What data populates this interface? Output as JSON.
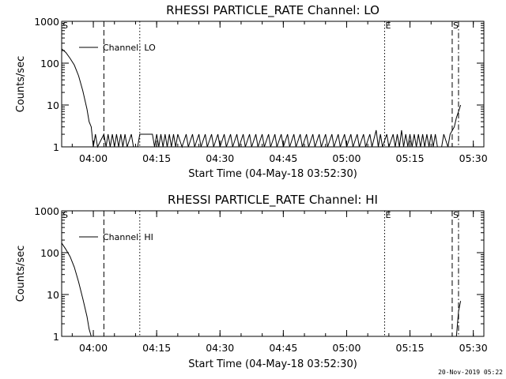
{
  "footer_text": "20-Nov-2019 05:22",
  "chart_data": [
    {
      "type": "line",
      "title": "RHESSI PARTICLE_RATE Channel: LO",
      "xlabel": "Start Time (04-May-18 03:52:30)",
      "ylabel": "Counts/sec",
      "yscale": "log",
      "xlim": [
        "03:52:30",
        "05:32:30"
      ],
      "ylim": [
        1,
        1000
      ],
      "x_ticks": [
        "04:00",
        "04:15",
        "04:30",
        "04:45",
        "05:00",
        "05:15",
        "05:30"
      ],
      "y_ticks": [
        1,
        10,
        100,
        1000
      ],
      "y_tick_labels": [
        "1",
        "10",
        "100",
        "1000"
      ],
      "legend": {
        "position": "top-left",
        "entries": [
          "Channel: LO"
        ]
      },
      "markers": [
        {
          "time": "03:52:30",
          "label": "S",
          "style": "solid"
        },
        {
          "time": "04:02:30",
          "label": "",
          "style": "dashed"
        },
        {
          "time": "04:11:00",
          "label": "",
          "style": "dotted"
        },
        {
          "time": "05:09:00",
          "label": "E",
          "style": "dotted"
        },
        {
          "time": "05:25:00",
          "label": "S",
          "style": "dashed"
        },
        {
          "time": "05:26:30",
          "label": "",
          "style": "dashdot"
        }
      ],
      "series": [
        {
          "name": "Channel: LO",
          "points": [
            [
              "03:52:30",
              220
            ],
            [
              "03:53:30",
              180
            ],
            [
              "03:54:30",
              130
            ],
            [
              "03:55:30",
              90
            ],
            [
              "03:56:30",
              50
            ],
            [
              "03:57:30",
              22
            ],
            [
              "03:58:30",
              8
            ],
            [
              "03:59:00",
              4
            ],
            [
              "03:59:30",
              3
            ],
            [
              "04:00:00",
              1
            ],
            [
              "04:00:30",
              2
            ],
            [
              "04:01:00",
              1
            ],
            [
              "04:02:30",
              2
            ],
            [
              "04:03:00",
              1
            ],
            [
              "04:03:30",
              2
            ],
            [
              "04:04:00",
              1
            ],
            [
              "04:04:30",
              2
            ],
            [
              "04:05:00",
              1
            ],
            [
              "04:05:30",
              2
            ],
            [
              "04:06:00",
              1
            ],
            [
              "04:06:30",
              2
            ],
            [
              "04:07:00",
              1
            ],
            [
              "04:07:30",
              2
            ],
            [
              "04:08:00",
              1
            ],
            [
              "04:09:00",
              2
            ],
            [
              "04:09:30",
              1
            ],
            [
              "04:10:30",
              1
            ],
            [
              "04:11:00",
              2
            ],
            [
              "04:14:00",
              2
            ],
            [
              "04:14:30",
              1
            ],
            [
              "04:15:00",
              2
            ],
            [
              "04:15:30",
              1
            ],
            [
              "04:16:00",
              2
            ],
            [
              "04:16:30",
              1
            ],
            [
              "04:17:00",
              2
            ],
            [
              "04:17:30",
              1
            ],
            [
              "04:18:00",
              2
            ],
            [
              "04:18:30",
              1
            ],
            [
              "04:19:00",
              2
            ],
            [
              "04:19:30",
              1
            ],
            [
              "04:20:00",
              2
            ],
            [
              "04:21:00",
              1
            ],
            [
              "04:22:00",
              2
            ],
            [
              "04:22:30",
              1
            ],
            [
              "04:23:30",
              2
            ],
            [
              "04:24:00",
              1
            ],
            [
              "04:25:00",
              2
            ],
            [
              "04:25:30",
              1
            ],
            [
              "04:26:30",
              2
            ],
            [
              "04:27:00",
              1
            ],
            [
              "04:28:00",
              2
            ],
            [
              "04:28:30",
              1
            ],
            [
              "04:29:30",
              2
            ],
            [
              "04:30:00",
              1
            ],
            [
              "04:31:00",
              2
            ],
            [
              "04:31:30",
              1
            ],
            [
              "04:32:30",
              2
            ],
            [
              "04:33:00",
              1
            ],
            [
              "04:34:00",
              2
            ],
            [
              "04:34:30",
              1
            ],
            [
              "04:35:30",
              2
            ],
            [
              "04:36:00",
              1
            ],
            [
              "04:37:00",
              2
            ],
            [
              "04:37:30",
              1
            ],
            [
              "04:38:30",
              2
            ],
            [
              "04:39:00",
              1
            ],
            [
              "04:40:00",
              2
            ],
            [
              "04:40:30",
              1
            ],
            [
              "04:41:30",
              2
            ],
            [
              "04:42:00",
              1
            ],
            [
              "04:43:00",
              2
            ],
            [
              "04:43:30",
              1
            ],
            [
              "04:44:30",
              2
            ],
            [
              "04:45:00",
              1
            ],
            [
              "04:46:00",
              2
            ],
            [
              "04:46:30",
              1
            ],
            [
              "04:47:30",
              2
            ],
            [
              "04:48:00",
              1
            ],
            [
              "04:49:00",
              2
            ],
            [
              "04:49:30",
              1
            ],
            [
              "04:50:30",
              2
            ],
            [
              "04:51:00",
              1
            ],
            [
              "04:52:00",
              2
            ],
            [
              "04:52:30",
              1
            ],
            [
              "04:53:30",
              2
            ],
            [
              "04:54:00",
              1
            ],
            [
              "04:55:00",
              2
            ],
            [
              "04:55:30",
              1
            ],
            [
              "04:56:30",
              2
            ],
            [
              "04:57:00",
              1
            ],
            [
              "04:58:00",
              2
            ],
            [
              "04:58:30",
              1
            ],
            [
              "04:59:30",
              2
            ],
            [
              "05:00:00",
              1
            ],
            [
              "05:01:00",
              2
            ],
            [
              "05:01:30",
              1
            ],
            [
              "05:02:30",
              2
            ],
            [
              "05:03:00",
              1
            ],
            [
              "05:04:00",
              2
            ],
            [
              "05:04:30",
              1
            ],
            [
              "05:05:30",
              2
            ],
            [
              "05:06:00",
              1
            ],
            [
              "05:07:00",
              2.5
            ],
            [
              "05:07:30",
              1
            ],
            [
              "05:08:00",
              2
            ],
            [
              "05:08:30",
              1
            ],
            [
              "05:09:30",
              2
            ],
            [
              "05:10:00",
              1
            ],
            [
              "05:11:00",
              2
            ],
            [
              "05:11:30",
              1
            ],
            [
              "05:12:00",
              2
            ],
            [
              "05:12:30",
              1
            ],
            [
              "05:13:00",
              2.5
            ],
            [
              "05:13:30",
              1
            ],
            [
              "05:14:00",
              2
            ],
            [
              "05:14:30",
              1
            ],
            [
              "05:15:00",
              2
            ],
            [
              "05:15:30",
              1
            ],
            [
              "05:16:00",
              2
            ],
            [
              "05:16:30",
              1
            ],
            [
              "05:17:00",
              2
            ],
            [
              "05:17:30",
              1
            ],
            [
              "05:18:00",
              2
            ],
            [
              "05:18:30",
              1
            ],
            [
              "05:19:00",
              2
            ],
            [
              "05:19:30",
              1
            ],
            [
              "05:20:00",
              2
            ],
            [
              "05:20:30",
              1
            ],
            [
              "05:21:00",
              2
            ],
            [
              "05:21:30",
              1
            ],
            [
              "05:22:30",
              1
            ],
            [
              "05:23:00",
              2
            ],
            [
              "05:24:00",
              1
            ],
            [
              "05:24:30",
              2
            ],
            [
              "05:25:30",
              3
            ],
            [
              "05:26:00",
              5
            ],
            [
              "05:26:30",
              7
            ],
            [
              "05:27:00",
              10
            ]
          ]
        }
      ]
    },
    {
      "type": "line",
      "title": "RHESSI PARTICLE_RATE Channel: HI",
      "xlabel": "Start Time (04-May-18 03:52:30)",
      "ylabel": "Counts/sec",
      "yscale": "log",
      "xlim": [
        "03:52:30",
        "05:32:30"
      ],
      "ylim": [
        1,
        1000
      ],
      "x_ticks": [
        "04:00",
        "04:15",
        "04:30",
        "04:45",
        "05:00",
        "05:15",
        "05:30"
      ],
      "y_ticks": [
        1,
        10,
        100,
        1000
      ],
      "y_tick_labels": [
        "1",
        "10",
        "100",
        "1000"
      ],
      "legend": {
        "position": "top-left",
        "entries": [
          "Channel: HI"
        ]
      },
      "markers": [
        {
          "time": "03:52:30",
          "label": "S",
          "style": "solid"
        },
        {
          "time": "04:02:30",
          "label": "",
          "style": "dashed"
        },
        {
          "time": "04:11:00",
          "label": "",
          "style": "dotted"
        },
        {
          "time": "05:09:00",
          "label": "E",
          "style": "dotted"
        },
        {
          "time": "05:25:00",
          "label": "S",
          "style": "dashed"
        },
        {
          "time": "05:26:30",
          "label": "",
          "style": "dashdot"
        }
      ],
      "series": [
        {
          "name": "Channel: HI",
          "points": [
            [
              "03:52:30",
              170
            ],
            [
              "03:53:30",
              120
            ],
            [
              "03:54:30",
              80
            ],
            [
              "03:55:30",
              45
            ],
            [
              "03:56:30",
              20
            ],
            [
              "03:57:30",
              8
            ],
            [
              "03:58:30",
              3
            ],
            [
              "03:59:00",
              1.5
            ],
            [
              "03:59:30",
              1
            ],
            [
              "05:26:00",
              1
            ],
            [
              "05:26:30",
              4
            ],
            [
              "05:27:00",
              7
            ]
          ]
        }
      ]
    }
  ]
}
